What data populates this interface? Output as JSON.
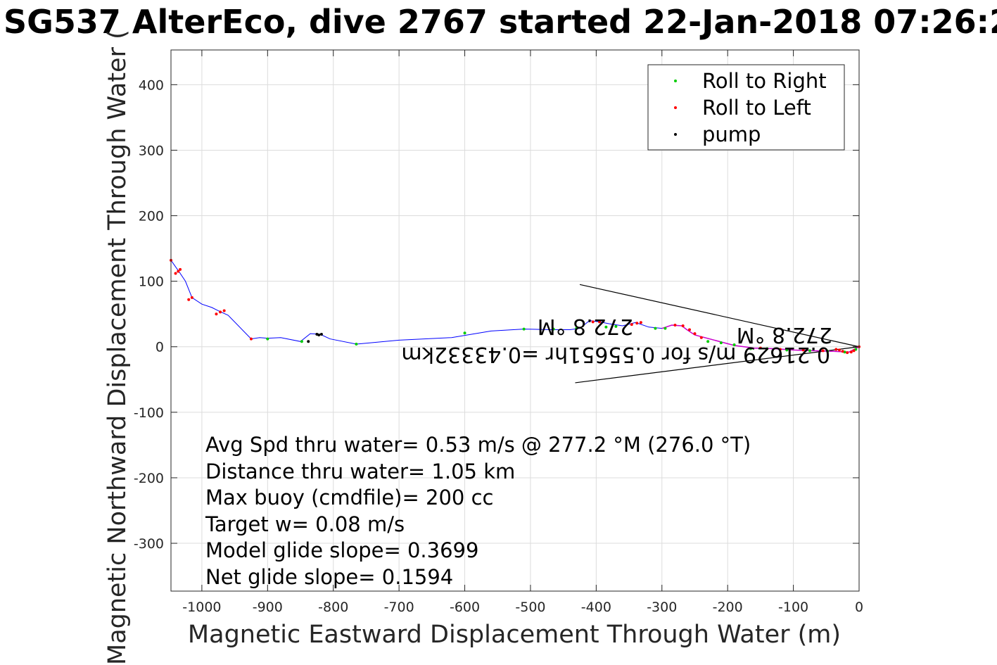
{
  "chart_data": {
    "type": "line",
    "title": "SG537 AlterEco, dive 2767 started 22-Jan-2018 07:26:2",
    "xlabel": "Magnetic Eastward Displacement Through Water (m)",
    "ylabel": "Magnetic Northward Displacement Through Water (",
    "xlim": [
      -1047,
      0
    ],
    "ylim": [
      -373,
      453
    ],
    "xticks": [
      -1000,
      -900,
      -800,
      -700,
      -600,
      -500,
      -400,
      -300,
      -200,
      -100,
      0
    ],
    "yticks": [
      -300,
      -200,
      -100,
      0,
      100,
      200,
      300,
      400
    ],
    "grid": true,
    "legend_position": "top-right",
    "legend": [
      "Roll to Right",
      "Roll to Left",
      "pump"
    ],
    "colors": {
      "track": "#0000ff",
      "roll_right": "#00cc00",
      "roll_left": "#ff0000",
      "pump": "#000000",
      "overlay_track": "#cc00cc",
      "current_wedge": "#000000",
      "grid": "#dcdcdc",
      "axis": "#262626"
    },
    "series": [
      {
        "name": "track",
        "x": [
          0,
          -15,
          -40,
          -70,
          -100,
          -130,
          -160,
          -190,
          -220,
          -250,
          -262,
          -270,
          -285,
          -300,
          -320,
          -340,
          -360,
          -380,
          -395,
          -410,
          -425,
          -440,
          -470,
          -510,
          -560,
          -620,
          -700,
          -765,
          -805,
          -820,
          -835,
          -850,
          -880,
          -900,
          -912,
          -925,
          -960,
          -975,
          -985,
          -1000,
          -1015,
          -1025,
          -1035,
          -1040,
          -1047
        ],
        "y": [
          0,
          -8,
          -7,
          -6,
          -5,
          -3,
          -2,
          2,
          10,
          18,
          26,
          32,
          33,
          28,
          30,
          37,
          32,
          35,
          38,
          40,
          28,
          26,
          26,
          27,
          24,
          14,
          10,
          4,
          12,
          19,
          20,
          8,
          14,
          13,
          14,
          12,
          48,
          55,
          60,
          65,
          75,
          100,
          115,
          122,
          132
        ]
      },
      {
        "name": "Roll to Right",
        "x": [
          -5,
          -22,
          -48,
          -75,
          -110,
          -140,
          -165,
          -190,
          -210,
          -230,
          -295,
          -310,
          -370,
          -385,
          -430,
          -465,
          -510,
          -600,
          -765,
          -848,
          -900
        ],
        "y": [
          -4,
          -8,
          -7,
          -6,
          -5,
          -3,
          -3,
          3,
          6,
          8,
          28,
          28,
          31,
          30,
          28,
          27,
          27,
          21,
          4,
          8,
          12
        ]
      },
      {
        "name": "Roll to Left",
        "x": [
          0,
          -8,
          -12,
          -18,
          -25,
          -30,
          -35,
          -55,
          -85,
          -120,
          -150,
          -240,
          -250,
          -258,
          -268,
          -280,
          -332,
          -338,
          -346,
          -395,
          -405,
          -925,
          -966,
          -972,
          -978,
          -1015,
          -1020,
          -1033,
          -1036,
          -1040,
          -1047
        ],
        "y": [
          0,
          -6,
          -8,
          -9,
          -7,
          -5,
          -4,
          -6,
          -5,
          -4,
          -2,
          14,
          20,
          26,
          32,
          33,
          37,
          36,
          34,
          38,
          38,
          12,
          55,
          53,
          50,
          75,
          72,
          118,
          115,
          112,
          132
        ]
      },
      {
        "name": "pump",
        "x": [
          -818,
          -822,
          -838,
          -825
        ],
        "y": [
          19,
          18,
          8,
          19
        ]
      }
    ],
    "current_wedge": [
      {
        "x": [
          -425,
          0
        ],
        "y": [
          95,
          0
        ]
      },
      {
        "x": [
          -432,
          0
        ],
        "y": [
          -55,
          0
        ]
      }
    ],
    "annotations_upside_down": [
      "0.21629 m/s for 0.55651hr =0.43332km",
      "272.8 °M",
      "272.8 °M"
    ],
    "stats": [
      "Avg Spd thru water=  0.53 m/s @ 277.2 °M (276.0 °T)",
      "Distance thru water=  1.05 km",
      "Max buoy (cmdfile)= 200 cc",
      "Target w= 0.08 m/s",
      "Model glide slope= 0.3699",
      "Net glide slope= 0.1594"
    ]
  }
}
